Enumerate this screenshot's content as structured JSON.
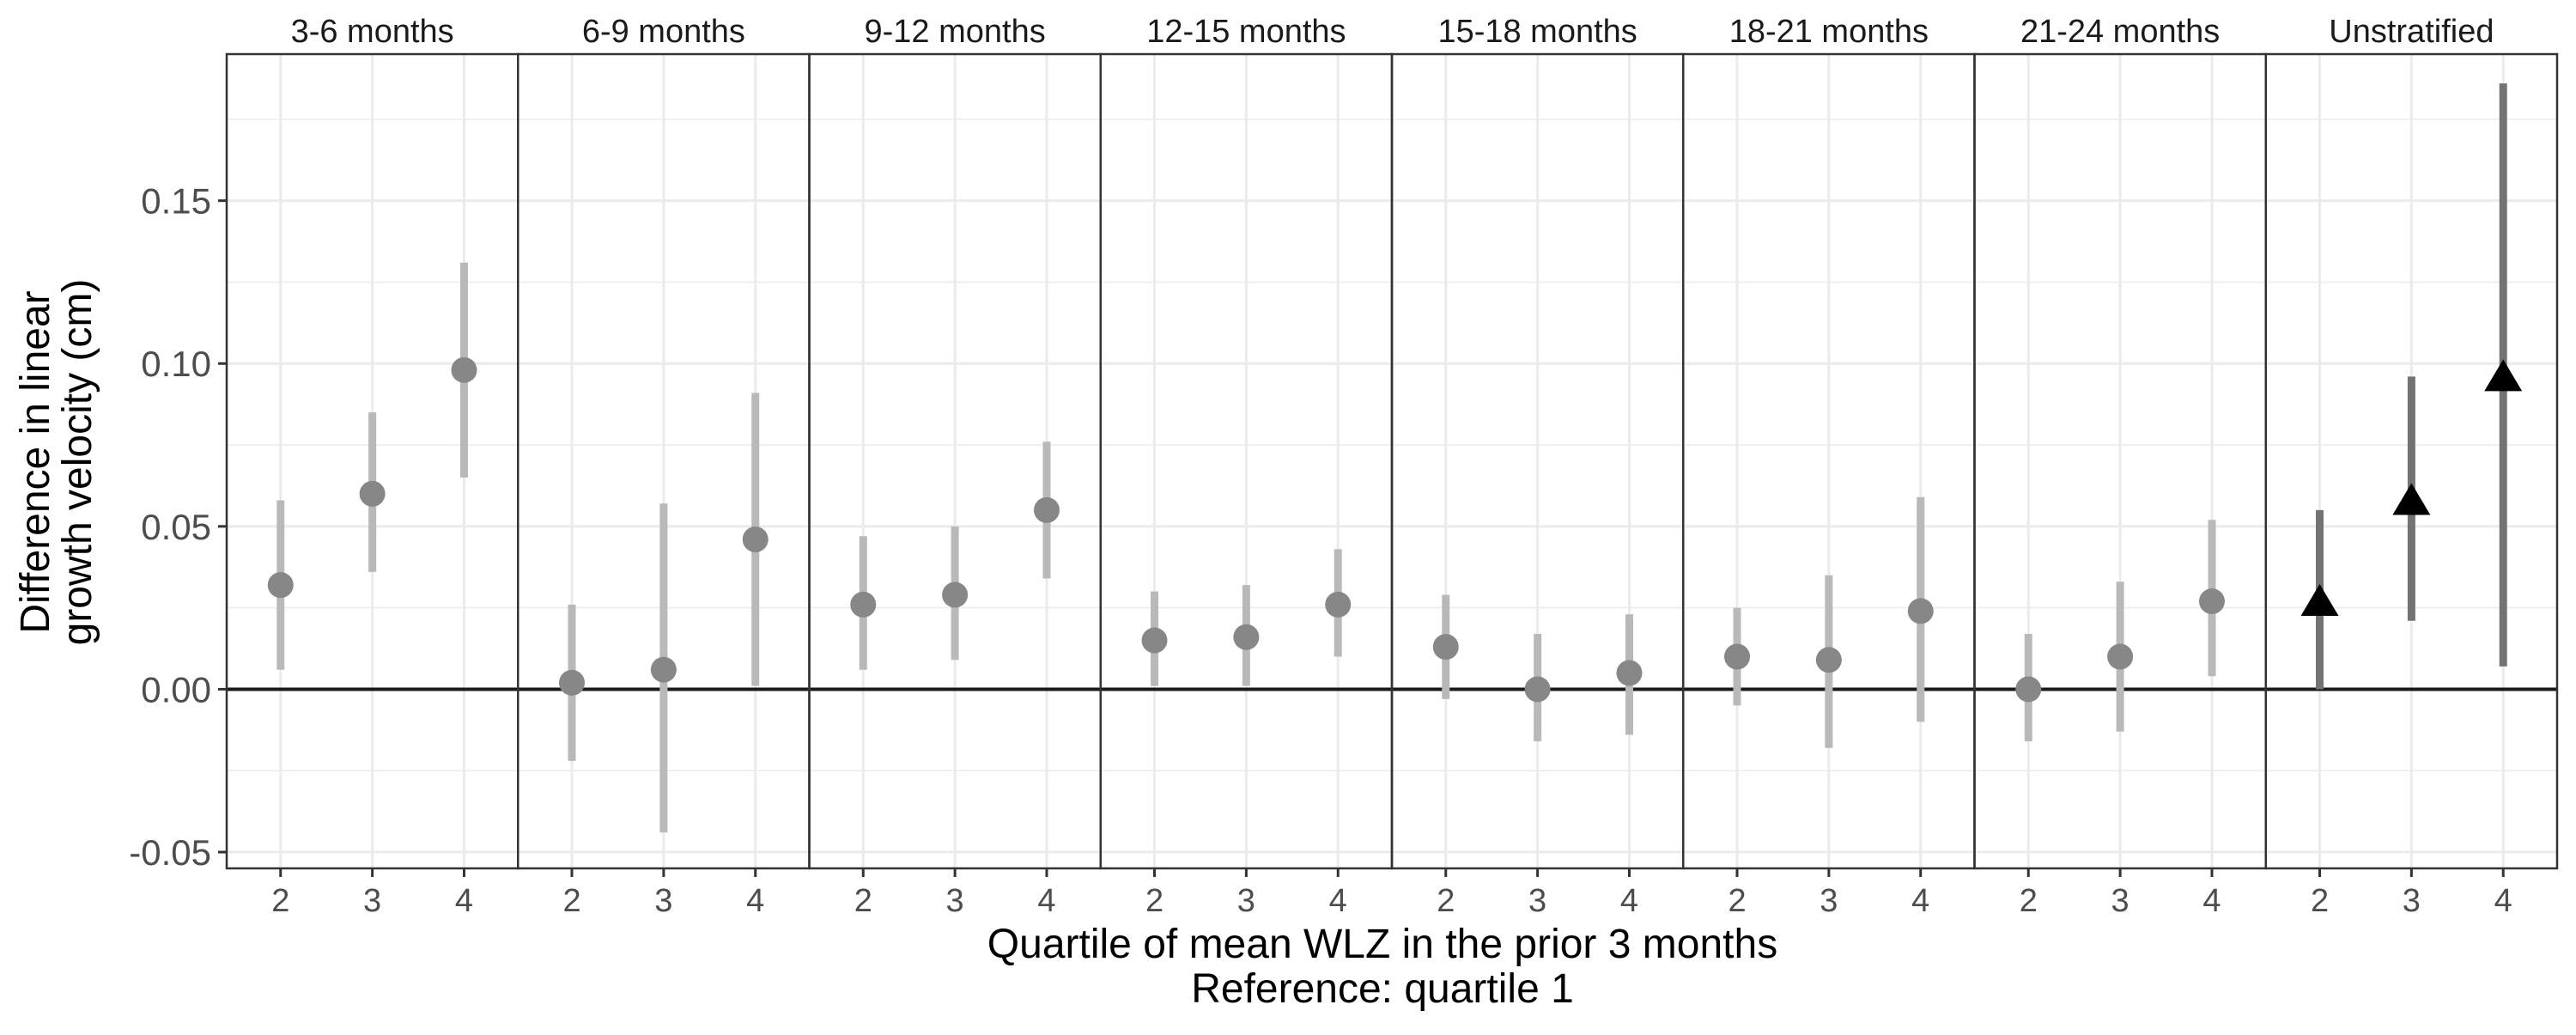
{
  "chart_data": {
    "type": "scatter",
    "title": "",
    "xlabel": "Quartile of mean WLZ in the prior 3 months",
    "xlabel2": "Reference: quartile 1",
    "ylabel": "Difference in linear growth velocity (cm)",
    "ylabel_lines": [
      "Difference in linear",
      "growth velocity (cm)"
    ],
    "ylim": [
      -0.055,
      0.195
    ],
    "y_ticks": [
      -0.05,
      0.0,
      0.05,
      0.1,
      0.15
    ],
    "y_tick_labels": [
      "-0.05",
      "0.00",
      "0.05",
      "0.10",
      "0.15"
    ],
    "x_categories": [
      "2",
      "3",
      "4"
    ],
    "reference_line": 0,
    "grid": true,
    "panels": [
      {
        "label": "3-6 months",
        "marker": "circle",
        "points": [
          {
            "x": "2",
            "estimate": 0.032,
            "lower": 0.006,
            "upper": 0.058
          },
          {
            "x": "3",
            "estimate": 0.06,
            "lower": 0.036,
            "upper": 0.085
          },
          {
            "x": "4",
            "estimate": 0.098,
            "lower": 0.065,
            "upper": 0.131
          }
        ]
      },
      {
        "label": "6-9 months",
        "marker": "circle",
        "points": [
          {
            "x": "2",
            "estimate": 0.002,
            "lower": -0.022,
            "upper": 0.026
          },
          {
            "x": "3",
            "estimate": 0.006,
            "lower": -0.044,
            "upper": 0.057
          },
          {
            "x": "4",
            "estimate": 0.046,
            "lower": 0.001,
            "upper": 0.091
          }
        ]
      },
      {
        "label": "9-12 months",
        "marker": "circle",
        "points": [
          {
            "x": "2",
            "estimate": 0.026,
            "lower": 0.006,
            "upper": 0.047
          },
          {
            "x": "3",
            "estimate": 0.029,
            "lower": 0.009,
            "upper": 0.05
          },
          {
            "x": "4",
            "estimate": 0.055,
            "lower": 0.034,
            "upper": 0.076
          }
        ]
      },
      {
        "label": "12-15 months",
        "marker": "circle",
        "points": [
          {
            "x": "2",
            "estimate": 0.015,
            "lower": 0.001,
            "upper": 0.03
          },
          {
            "x": "3",
            "estimate": 0.016,
            "lower": 0.001,
            "upper": 0.032
          },
          {
            "x": "4",
            "estimate": 0.026,
            "lower": 0.01,
            "upper": 0.043
          }
        ]
      },
      {
        "label": "15-18 months",
        "marker": "circle",
        "points": [
          {
            "x": "2",
            "estimate": 0.013,
            "lower": -0.003,
            "upper": 0.029
          },
          {
            "x": "3",
            "estimate": 0.0,
            "lower": -0.016,
            "upper": 0.017
          },
          {
            "x": "4",
            "estimate": 0.005,
            "lower": -0.014,
            "upper": 0.023
          }
        ]
      },
      {
        "label": "18-21 months",
        "marker": "circle",
        "points": [
          {
            "x": "2",
            "estimate": 0.01,
            "lower": -0.005,
            "upper": 0.025
          },
          {
            "x": "3",
            "estimate": 0.009,
            "lower": -0.018,
            "upper": 0.035
          },
          {
            "x": "4",
            "estimate": 0.024,
            "lower": -0.01,
            "upper": 0.059
          }
        ]
      },
      {
        "label": "21-24 months",
        "marker": "circle",
        "points": [
          {
            "x": "2",
            "estimate": 0.0,
            "lower": -0.016,
            "upper": 0.017
          },
          {
            "x": "3",
            "estimate": 0.01,
            "lower": -0.013,
            "upper": 0.033
          },
          {
            "x": "4",
            "estimate": 0.027,
            "lower": 0.004,
            "upper": 0.052
          }
        ]
      },
      {
        "label": "Unstratified",
        "marker": "triangle",
        "points": [
          {
            "x": "2",
            "estimate": 0.027,
            "lower": 0.0,
            "upper": 0.055
          },
          {
            "x": "3",
            "estimate": 0.058,
            "lower": 0.021,
            "upper": 0.096
          },
          {
            "x": "4",
            "estimate": 0.096,
            "lower": 0.007,
            "upper": 0.186
          }
        ]
      }
    ],
    "colors": {
      "stratified_point": "#878787",
      "stratified_ci": "#b9b9b9",
      "unstratified_point": "#000000",
      "unstratified_ci": "#737373",
      "grid": "#ebebeb",
      "panel_border": "#333333",
      "reference_line": "#1a1a1a"
    }
  }
}
